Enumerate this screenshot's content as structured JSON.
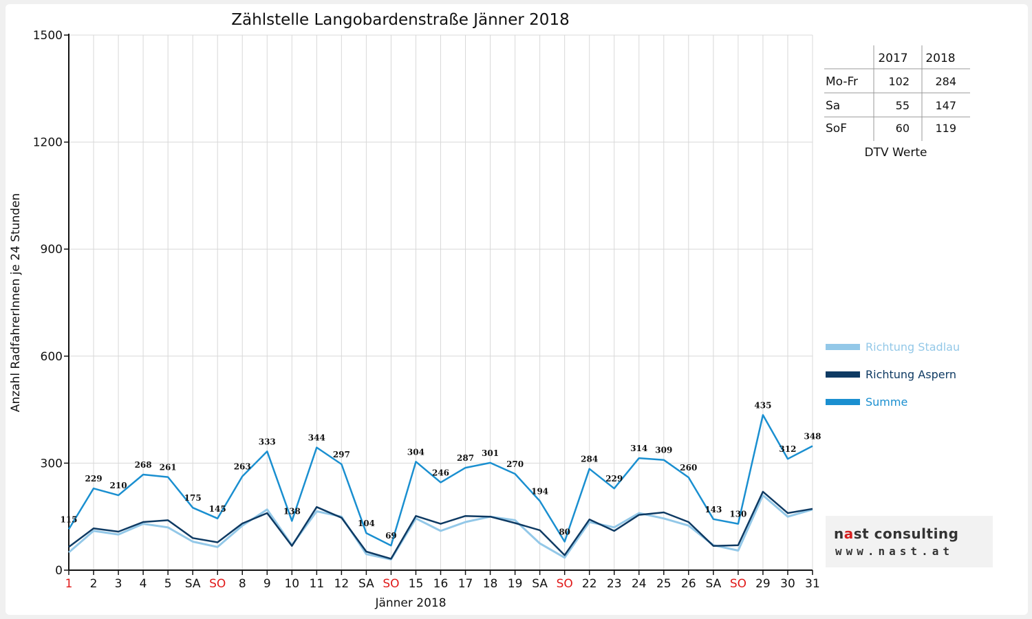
{
  "chart_data": {
    "type": "line",
    "title": "Zählstelle Langobardenstraße Jänner 2018",
    "xlabel": "Jänner 2018",
    "ylabel": "Anzahl RadfahrerInnen je 24 Stunden",
    "ylim": [
      0,
      1500
    ],
    "yticks": [
      0,
      300,
      600,
      900,
      1200,
      1500
    ],
    "grid": true,
    "legend_position": "right",
    "categories": [
      "1",
      "2",
      "3",
      "4",
      "5",
      "SA",
      "SO",
      "8",
      "9",
      "10",
      "11",
      "12",
      "SA",
      "SO",
      "15",
      "16",
      "17",
      "18",
      "19",
      "SA",
      "SO",
      "22",
      "23",
      "24",
      "25",
      "26",
      "SA",
      "SO",
      "29",
      "30",
      "31"
    ],
    "red_categories": [
      0,
      6,
      13,
      20,
      27
    ],
    "series": [
      {
        "name": "Richtung Stadlau",
        "color": "#93c8e8",
        "values": [
          50,
          110,
          100,
          130,
          120,
          80,
          65,
          125,
          170,
          70,
          165,
          150,
          45,
          30,
          145,
          110,
          135,
          150,
          140,
          75,
          35,
          135,
          120,
          160,
          145,
          125,
          70,
          55,
          210,
          150,
          170
        ]
      },
      {
        "name": "Richtung Aspern",
        "color": "#0e3a63",
        "values": [
          65,
          117,
          108,
          135,
          140,
          90,
          78,
          131,
          160,
          68,
          177,
          147,
          52,
          32,
          152,
          130,
          152,
          150,
          132,
          112,
          42,
          142,
          110,
          155,
          162,
          135,
          68,
          70,
          220,
          160,
          172
        ]
      },
      {
        "name": "Summe",
        "color": "#1a8fd0",
        "values": [
          115,
          229,
          210,
          268,
          261,
          175,
          145,
          263,
          333,
          138,
          344,
          297,
          104,
          69,
          304,
          246,
          287,
          301,
          270,
          194,
          80,
          284,
          229,
          314,
          309,
          260,
          143,
          130,
          435,
          312,
          348
        ]
      }
    ],
    "data_labels": [
      "115",
      "229",
      "210",
      "268",
      "261",
      "175",
      "145",
      "263",
      "333",
      "138",
      "344",
      "297",
      "104",
      "69",
      "304",
      "246",
      "287",
      "301",
      "270",
      "194",
      "80",
      "284",
      "229",
      "314",
      "309",
      "260",
      "143",
      "130",
      "435",
      "312",
      "348"
    ]
  },
  "dtv_table": {
    "years": [
      "2017",
      "2018"
    ],
    "rows": [
      {
        "label": "Mo-Fr",
        "v2017": "102",
        "v2018": "284"
      },
      {
        "label": "Sa",
        "v2017": "55",
        "v2018": "147"
      },
      {
        "label": "SoF",
        "v2017": "60",
        "v2018": "119"
      }
    ],
    "caption": "DTV Werte"
  },
  "logo": {
    "name_pre": "n",
    "name_a": "a",
    "name_post": "st consulting",
    "url": "www.nast.at"
  },
  "colors": {
    "red": "#e01818",
    "text": "#111111"
  }
}
